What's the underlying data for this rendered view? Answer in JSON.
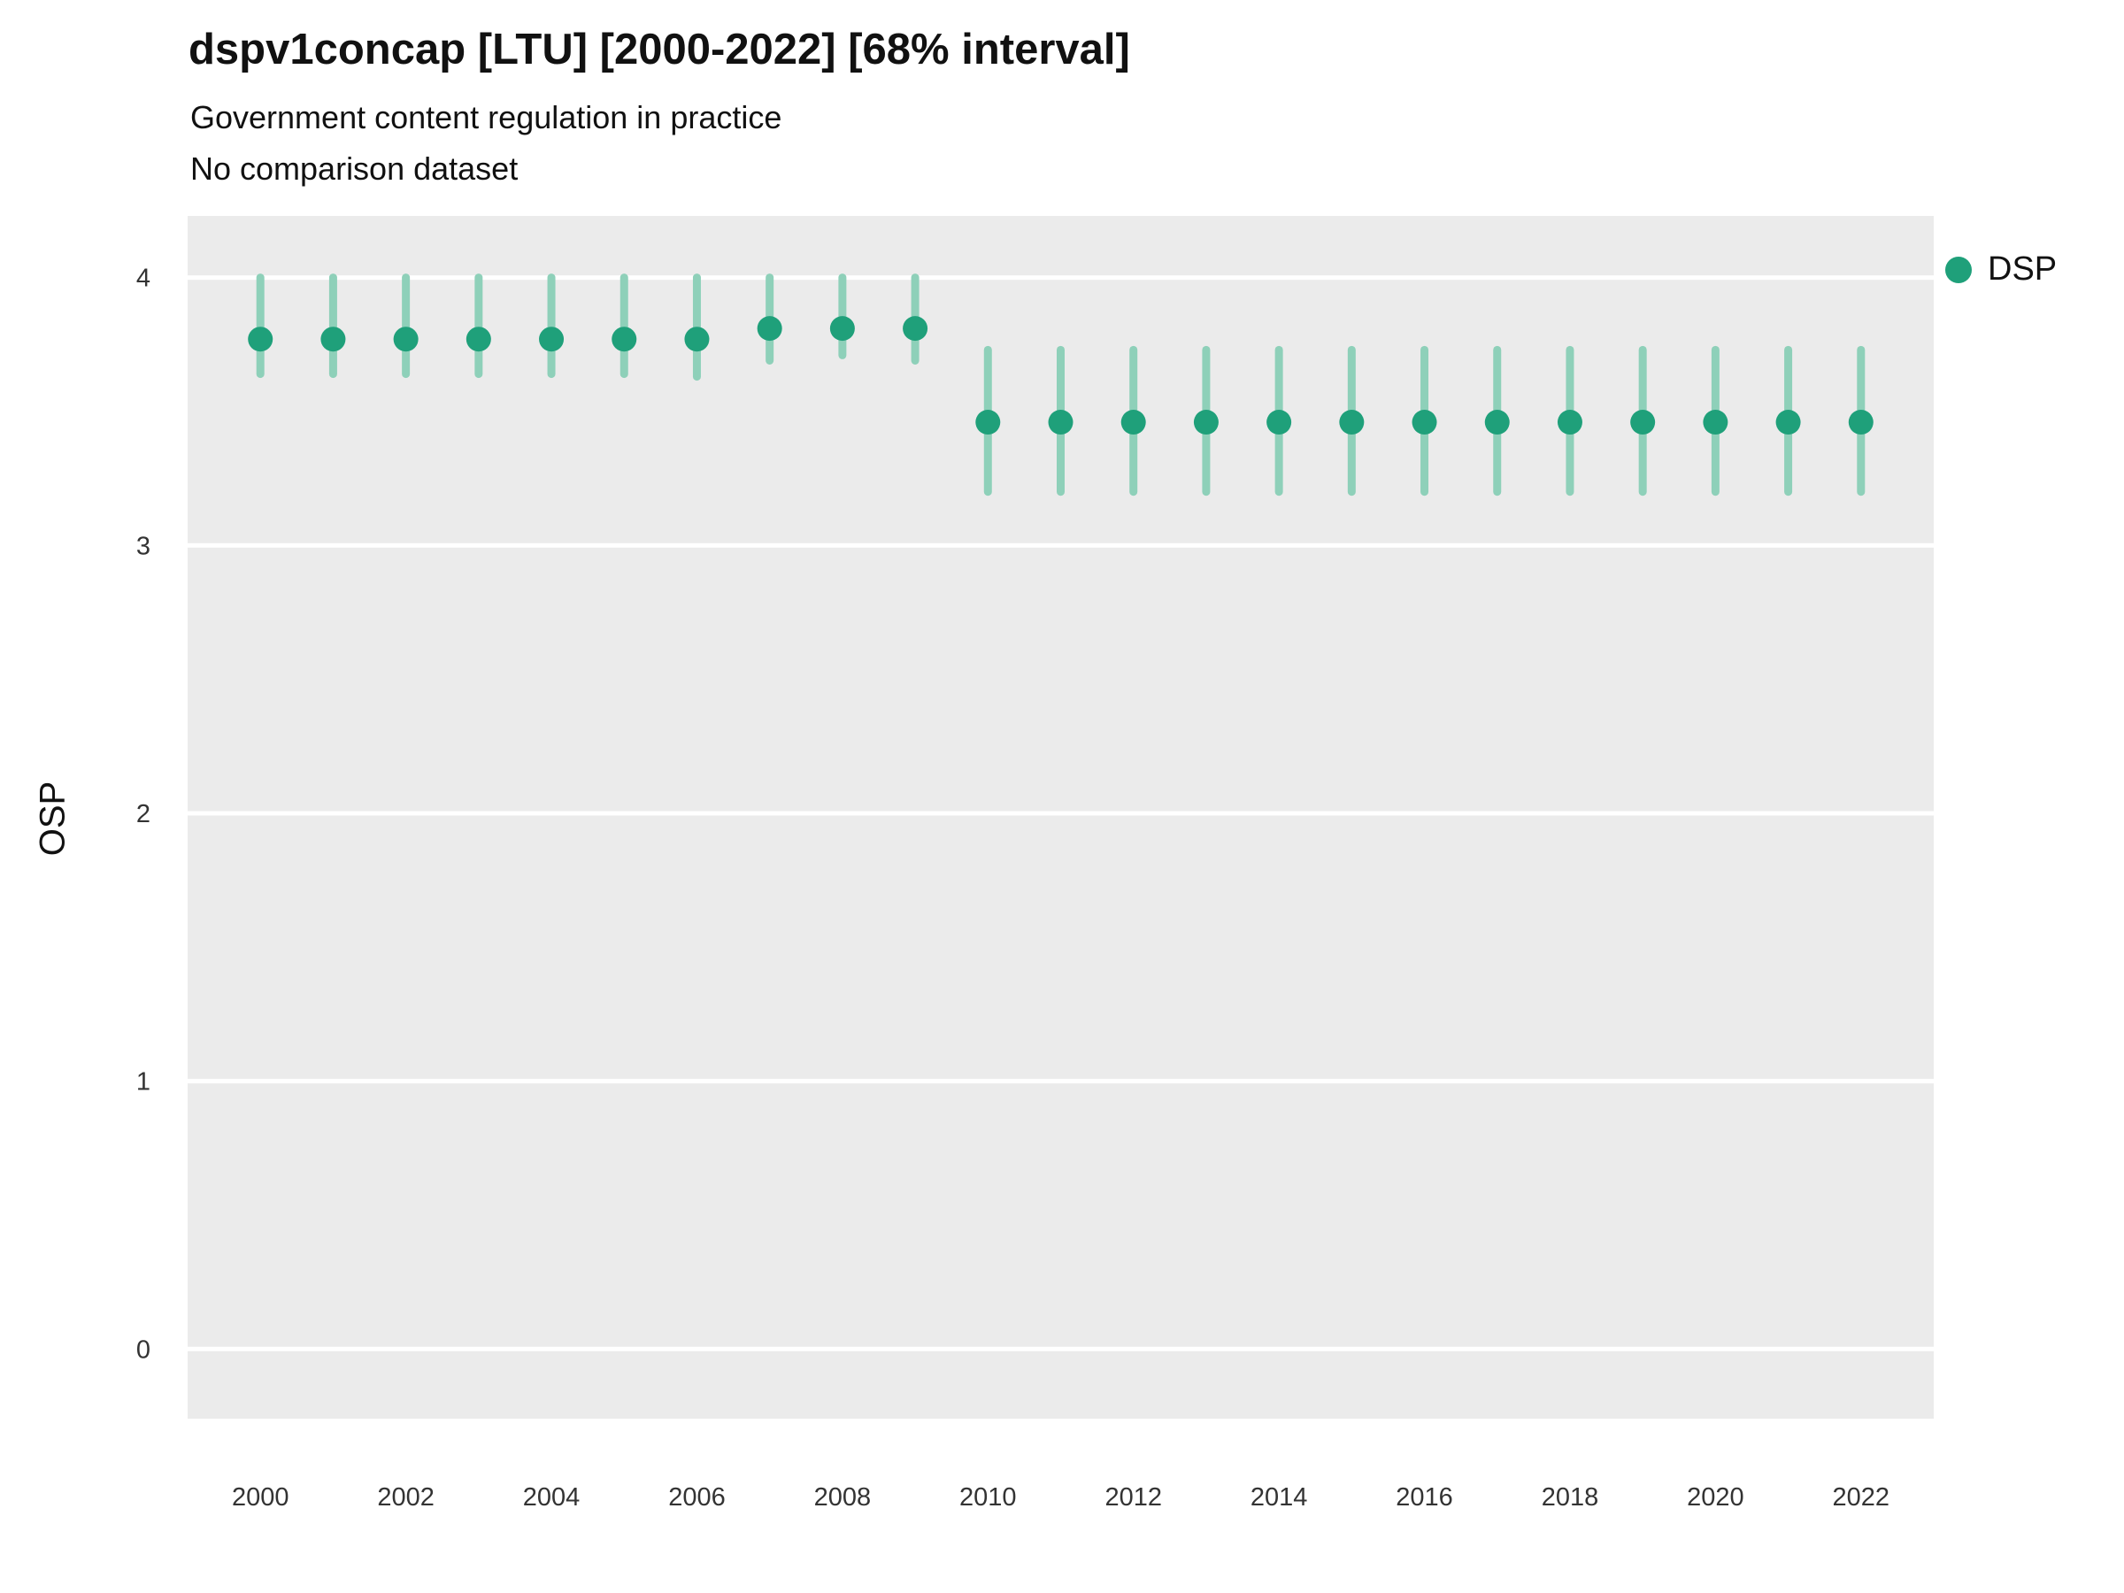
{
  "chart_data": {
    "type": "pointrange",
    "title": "dspv1concap [LTU] [2000-2022] [68% interval]",
    "subtitle": "Government content regulation in practice",
    "subtitle2": "No comparison dataset",
    "ylabel": "OSP",
    "legend_label": "DSP",
    "legend_position": "right-top",
    "grid": "major-horizontal",
    "colors": {
      "point": "#1fa07a",
      "interval": "#8ed0b9",
      "plot_bg": "#ebebeb",
      "grid_line": "#ffffff",
      "tick_text": "#333333"
    },
    "ylim": [
      -0.26,
      4.23
    ],
    "yticks": [
      0,
      1,
      2,
      3,
      4
    ],
    "xlim": [
      1999,
      2023
    ],
    "xticks": [
      2000,
      2002,
      2004,
      2006,
      2008,
      2010,
      2012,
      2014,
      2016,
      2018,
      2020,
      2022
    ],
    "series": [
      {
        "name": "DSP",
        "points": [
          {
            "year": 2000,
            "value": 3.77,
            "lo": 3.64,
            "hi": 4.0
          },
          {
            "year": 2001,
            "value": 3.77,
            "lo": 3.64,
            "hi": 4.0
          },
          {
            "year": 2002,
            "value": 3.77,
            "lo": 3.64,
            "hi": 4.0
          },
          {
            "year": 2003,
            "value": 3.77,
            "lo": 3.64,
            "hi": 4.0
          },
          {
            "year": 2004,
            "value": 3.77,
            "lo": 3.64,
            "hi": 4.0
          },
          {
            "year": 2005,
            "value": 3.77,
            "lo": 3.64,
            "hi": 4.0
          },
          {
            "year": 2006,
            "value": 3.77,
            "lo": 3.63,
            "hi": 4.0
          },
          {
            "year": 2007,
            "value": 3.81,
            "lo": 3.69,
            "hi": 4.0
          },
          {
            "year": 2008,
            "value": 3.81,
            "lo": 3.71,
            "hi": 4.0
          },
          {
            "year": 2009,
            "value": 3.81,
            "lo": 3.69,
            "hi": 4.0
          },
          {
            "year": 2010,
            "value": 3.46,
            "lo": 3.2,
            "hi": 3.73
          },
          {
            "year": 2011,
            "value": 3.46,
            "lo": 3.2,
            "hi": 3.73
          },
          {
            "year": 2012,
            "value": 3.46,
            "lo": 3.2,
            "hi": 3.73
          },
          {
            "year": 2013,
            "value": 3.46,
            "lo": 3.2,
            "hi": 3.73
          },
          {
            "year": 2014,
            "value": 3.46,
            "lo": 3.2,
            "hi": 3.73
          },
          {
            "year": 2015,
            "value": 3.46,
            "lo": 3.2,
            "hi": 3.73
          },
          {
            "year": 2016,
            "value": 3.46,
            "lo": 3.2,
            "hi": 3.73
          },
          {
            "year": 2017,
            "value": 3.46,
            "lo": 3.2,
            "hi": 3.73
          },
          {
            "year": 2018,
            "value": 3.46,
            "lo": 3.2,
            "hi": 3.73
          },
          {
            "year": 2019,
            "value": 3.46,
            "lo": 3.2,
            "hi": 3.73
          },
          {
            "year": 2020,
            "value": 3.46,
            "lo": 3.2,
            "hi": 3.73
          },
          {
            "year": 2021,
            "value": 3.46,
            "lo": 3.2,
            "hi": 3.73
          },
          {
            "year": 2022,
            "value": 3.46,
            "lo": 3.2,
            "hi": 3.73
          }
        ]
      }
    ]
  }
}
